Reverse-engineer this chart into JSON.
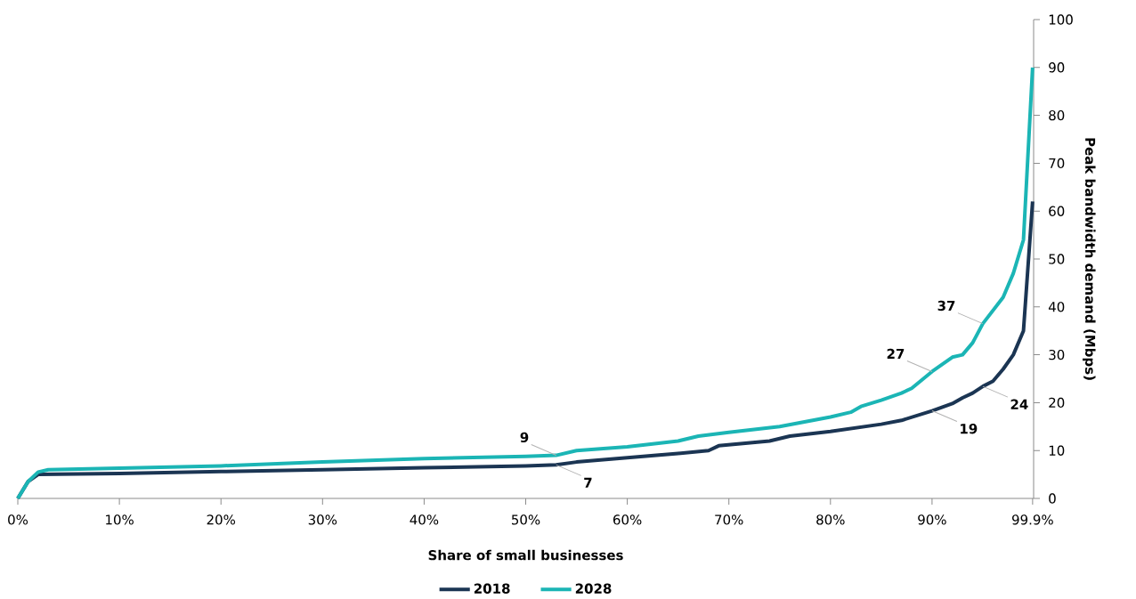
{
  "chart_data": {
    "type": "line",
    "xlabel": "Share of small businesses",
    "ylabel": "Peak bandwidth demand (Mbps)",
    "xlim": [
      0,
      100
    ],
    "ylim": [
      0,
      100
    ],
    "xticks": [
      {
        "value": 0,
        "label": "0%"
      },
      {
        "value": 10,
        "label": "10%"
      },
      {
        "value": 20,
        "label": "20%"
      },
      {
        "value": 30,
        "label": "30%"
      },
      {
        "value": 40,
        "label": "40%"
      },
      {
        "value": 50,
        "label": "50%"
      },
      {
        "value": 60,
        "label": "60%"
      },
      {
        "value": 70,
        "label": "70%"
      },
      {
        "value": 80,
        "label": "80%"
      },
      {
        "value": 90,
        "label": "90%"
      },
      {
        "value": 99.9,
        "label": "99.9%"
      }
    ],
    "yticks": [
      0,
      10,
      20,
      30,
      40,
      50,
      60,
      70,
      80,
      90,
      100
    ],
    "grid": false,
    "legend": "bottom",
    "marker": "none",
    "line_style": "solid",
    "series": [
      {
        "name": "2018",
        "color": "#1b3553",
        "x": [
          0,
          1,
          2,
          10,
          20,
          30,
          40,
          50,
          53,
          55,
          60,
          65,
          68,
          69,
          74,
          76,
          80,
          85,
          87,
          90,
          92,
          93,
          94,
          95,
          96,
          97,
          98,
          99,
          99.9
        ],
        "values": [
          0,
          3.5,
          5,
          5.2,
          5.6,
          6,
          6.4,
          6.8,
          7,
          7.6,
          8.5,
          9.4,
          10,
          11,
          12,
          13,
          14,
          15.5,
          16.3,
          18.3,
          19.8,
          21,
          22,
          23.4,
          24.5,
          27,
          30,
          35,
          62
        ]
      },
      {
        "name": "2028",
        "color": "#1bb5b5",
        "x": [
          0,
          1,
          2,
          3,
          10,
          20,
          30,
          40,
          50,
          53,
          55,
          60,
          65,
          67,
          70,
          75,
          80,
          82,
          83,
          85,
          87,
          88,
          90,
          92,
          93,
          94,
          95,
          97,
          98,
          99,
          99.9
        ],
        "values": [
          0,
          3.5,
          5.5,
          6,
          6.3,
          6.8,
          7.6,
          8.3,
          8.8,
          9,
          10,
          10.8,
          12,
          13,
          13.8,
          15,
          17,
          18,
          19.2,
          20.5,
          22,
          23,
          26.5,
          29.5,
          30,
          32.5,
          36.5,
          42,
          47,
          54,
          90
        ]
      }
    ],
    "annotations": [
      {
        "text": "9",
        "x": 53,
        "y": 9
      },
      {
        "text": "7",
        "x": 53,
        "y": 7
      },
      {
        "text": "27",
        "x": 90,
        "y": 27
      },
      {
        "text": "19",
        "x": 90,
        "y": 19
      },
      {
        "text": "37",
        "x": 95,
        "y": 37
      },
      {
        "text": "24",
        "x": 95,
        "y": 24
      }
    ]
  }
}
